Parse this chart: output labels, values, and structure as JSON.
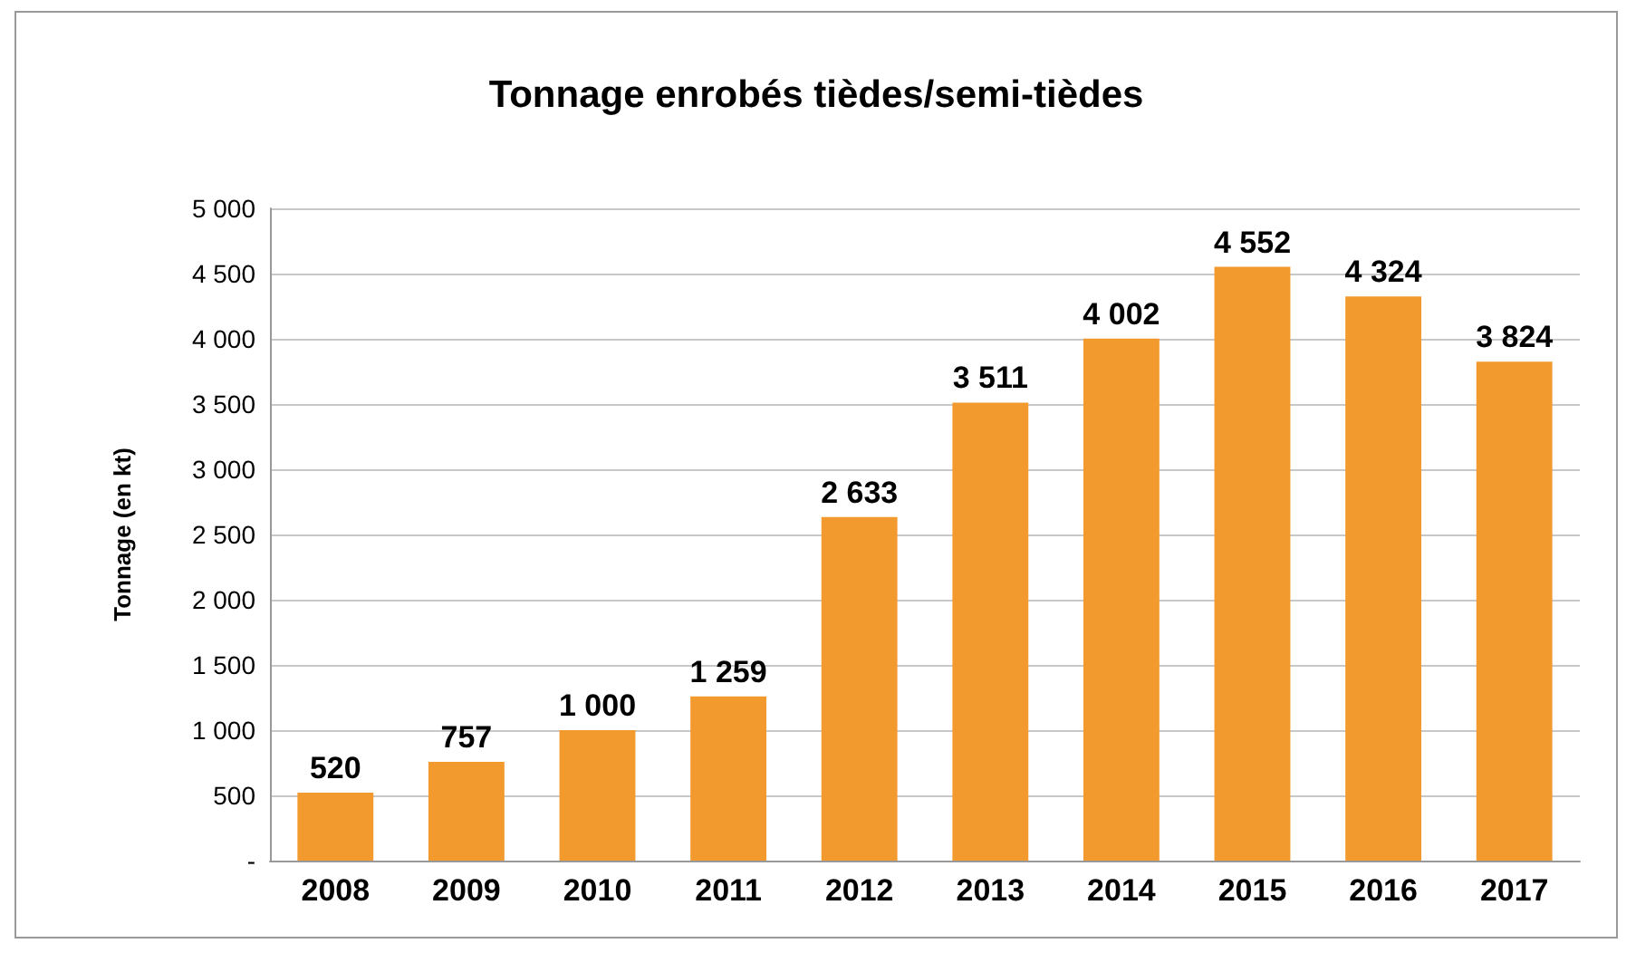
{
  "chart_data": {
    "type": "bar",
    "title": "Tonnage enrobés tièdes/semi-tièdes",
    "ylabel": "Tonnage (en kt)",
    "categories": [
      "2008",
      "2009",
      "2010",
      "2011",
      "2012",
      "2013",
      "2014",
      "2015",
      "2016",
      "2017"
    ],
    "values": [
      520,
      757,
      1000,
      1259,
      2633,
      3511,
      4002,
      4552,
      4324,
      3824
    ],
    "value_labels": [
      "520",
      "757",
      "1 000",
      "1 259",
      "2 633",
      "3 511",
      "4 002",
      "4 552",
      "4 324",
      "3 824"
    ],
    "color": "#f39a2e",
    "ylim": [
      0,
      5000
    ],
    "yticks": [
      {
        "value": 0,
        "label": "-"
      },
      500,
      {
        "value": 1000,
        "label": "1 000"
      },
      {
        "value": 1500,
        "label": "1 500"
      },
      {
        "value": 2000,
        "label": "2 000"
      },
      {
        "value": 2500,
        "label": "2 500"
      },
      {
        "value": 3000,
        "label": "3 000"
      },
      {
        "value": 3500,
        "label": "3 500"
      },
      {
        "value": 4000,
        "label": "4 000"
      },
      {
        "value": 4500,
        "label": "4 500"
      },
      {
        "value": 5000,
        "label": "5 000"
      }
    ],
    "grid": "y"
  }
}
